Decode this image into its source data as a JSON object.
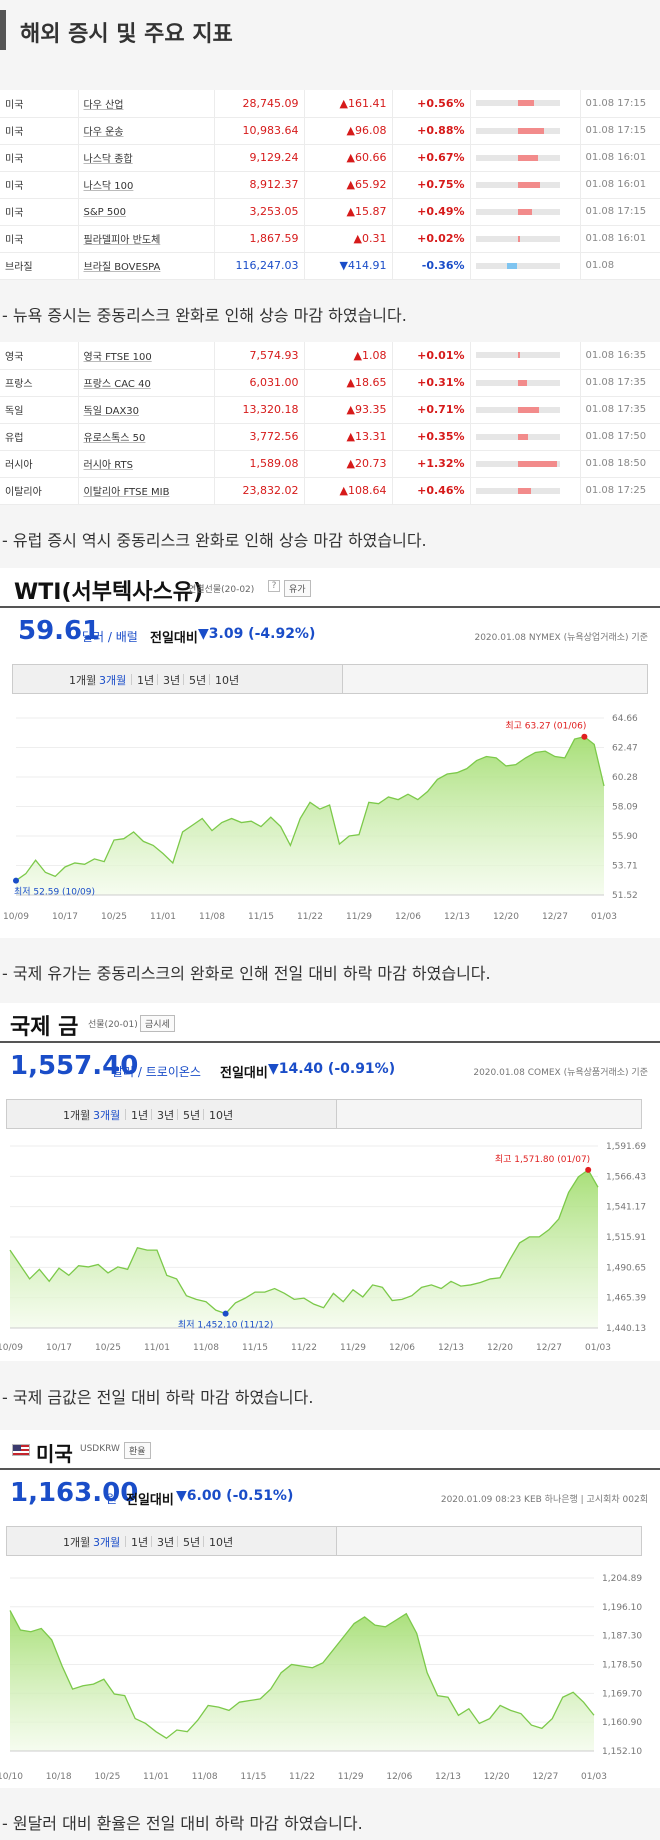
{
  "page_title": "해외 증시 및 주요 지표",
  "us_indices": [
    {
      "country": "미국",
      "name": "다우 산업",
      "price": "28,745.09",
      "change": "▲161.41",
      "pct": "+0.56%",
      "bar": 0.56,
      "time": "01.08 17:15"
    },
    {
      "country": "미국",
      "name": "다우 운송",
      "price": "10,983.64",
      "change": "▲96.08",
      "pct": "+0.88%",
      "bar": 0.88,
      "time": "01.08 17:15"
    },
    {
      "country": "미국",
      "name": "나스닥 종합",
      "price": "9,129.24",
      "change": "▲60.66",
      "pct": "+0.67%",
      "bar": 0.67,
      "time": "01.08 16:01"
    },
    {
      "country": "미국",
      "name": "나스닥 100",
      "price": "8,912.37",
      "change": "▲65.92",
      "pct": "+0.75%",
      "bar": 0.75,
      "time": "01.08 16:01"
    },
    {
      "country": "미국",
      "name": "S&P 500",
      "price": "3,253.05",
      "change": "▲15.87",
      "pct": "+0.49%",
      "bar": 0.49,
      "time": "01.08 17:15"
    },
    {
      "country": "미국",
      "name": "필라델피아 반도체",
      "price": "1,867.59",
      "change": "▲0.31",
      "pct": "+0.02%",
      "bar": 0.02,
      "time": "01.08 16:01"
    },
    {
      "country": "브라질",
      "name": "브라질 BOVESPA",
      "price": "116,247.03",
      "change": "▼414.91",
      "pct": "-0.36%",
      "bar": -0.36,
      "time": "01.08",
      "down": true
    }
  ],
  "note_us": "- 뉴욕 증시는 중동리스크 완화로 인해 상승 마감 하였습니다.",
  "eu_indices": [
    {
      "country": "영국",
      "name": "영국 FTSE 100",
      "price": "7,574.93",
      "change": "▲1.08",
      "pct": "+0.01%",
      "bar": 0.01,
      "time": "01.08 16:35"
    },
    {
      "country": "프랑스",
      "name": "프랑스 CAC 40",
      "price": "6,031.00",
      "change": "▲18.65",
      "pct": "+0.31%",
      "bar": 0.31,
      "time": "01.08 17:35"
    },
    {
      "country": "독일",
      "name": "독일 DAX30",
      "price": "13,320.18",
      "change": "▲93.35",
      "pct": "+0.71%",
      "bar": 0.71,
      "time": "01.08 17:35"
    },
    {
      "country": "유럽",
      "name": "유로스톡스 50",
      "price": "3,772.56",
      "change": "▲13.31",
      "pct": "+0.35%",
      "bar": 0.35,
      "time": "01.08 17:50"
    },
    {
      "country": "러시아",
      "name": "러시아 RTS",
      "price": "1,589.08",
      "change": "▲20.73",
      "pct": "+1.32%",
      "bar": 1.32,
      "time": "01.08 18:50"
    },
    {
      "country": "이탈리아",
      "name": "이탈리아 FTSE MIB",
      "price": "23,832.02",
      "change": "▲108.64",
      "pct": "+0.46%",
      "bar": 0.46,
      "time": "01.08 17:25"
    }
  ],
  "note_eu": "- 유럽 증시 역시 중동리스크 완화로 인해 상승 마감 하였습니다.",
  "wti": {
    "title": "WTI(서부텍사스유)",
    "sub": "연결선물(20-02)",
    "btn": "유가",
    "price": "59.61",
    "unit": "달러 / 배럴",
    "cmp_label": "전일대비",
    "change": "▼3.09 (-4.92%)",
    "source": "2020.01.08  NYMEX (뉴욕상업거래소) 기준",
    "tabs": [
      "1개월",
      "3개월",
      "1년",
      "3년",
      "5년",
      "10년"
    ],
    "active_tab": "3개월"
  },
  "note_wti": "- 국제 유가는 중동리스크의 완화로 인해 전일 대비 하락 마감 하였습니다.",
  "gold": {
    "title": "국제 금",
    "sub": "선물(20-01)",
    "btn": "금시세",
    "price": "1,557.40",
    "unit": "달러 / 트로이온스",
    "cmp_label": "전일대비",
    "change": "▼14.40 (-0.91%)",
    "source": "2020.01.08  COMEX (뉴욕상품거래소) 기준",
    "tabs": [
      "1개월",
      "3개월",
      "1년",
      "3년",
      "5년",
      "10년"
    ],
    "active_tab": "3개월"
  },
  "note_gold": "- 국제 금값은 전일 대비 하락 마감 하였습니다.",
  "usd": {
    "title": "미국",
    "sub": "USDKRW",
    "btn": "환율",
    "price": "1,163.00",
    "unit": "원",
    "cmp_label": "전일대비",
    "change": "▼6.00 (-0.51%)",
    "source": "2020.01.09  08:23  KEB 하나은행  |  고시회차 002회",
    "tabs": [
      "1개월",
      "3개월",
      "1년",
      "3년",
      "5년",
      "10년"
    ],
    "active_tab": "3개월"
  },
  "note_usd": "- 원달러 대비 환율은 전일 대비 하락 마감 하였습니다.",
  "colors": {
    "up": "#d61a1a",
    "down": "#1a4dc8",
    "area": "#b8e986",
    "line": "#7cc94a"
  },
  "chart_data": [
    {
      "type": "area",
      "title": "WTI(서부텍사스유)",
      "x_ticks": [
        "10/09",
        "10/17",
        "10/25",
        "11/01",
        "11/08",
        "11/15",
        "11/22",
        "11/29",
        "12/06",
        "12/13",
        "12/20",
        "12/27",
        "01/03"
      ],
      "y_ticks": [
        51.52,
        53.71,
        55.9,
        58.09,
        60.28,
        62.47,
        64.66
      ],
      "ylim": [
        51.52,
        64.66
      ],
      "values": [
        52.59,
        53.1,
        54.1,
        53.2,
        52.9,
        53.6,
        53.9,
        53.8,
        54.2,
        54.0,
        55.6,
        55.7,
        56.2,
        55.5,
        55.2,
        54.6,
        53.9,
        56.2,
        56.7,
        57.2,
        56.3,
        56.9,
        57.2,
        56.9,
        57.0,
        56.6,
        57.3,
        56.6,
        55.2,
        57.2,
        58.4,
        57.9,
        58.2,
        55.3,
        55.9,
        56.0,
        58.4,
        58.3,
        58.8,
        58.6,
        59.0,
        58.6,
        59.2,
        60.1,
        60.5,
        60.6,
        60.9,
        61.5,
        61.8,
        61.7,
        61.1,
        61.2,
        61.7,
        62.1,
        62.2,
        61.8,
        61.7,
        63.1,
        63.27,
        62.7,
        59.61
      ],
      "max_label": "최고 63.27 (01/06)",
      "min_label": "최저 52.59 (10/09)"
    },
    {
      "type": "area",
      "title": "국제 금",
      "x_ticks": [
        "10/09",
        "10/17",
        "10/25",
        "11/01",
        "11/08",
        "11/15",
        "11/22",
        "11/29",
        "12/06",
        "12/13",
        "12/20",
        "12/27",
        "01/03"
      ],
      "y_ticks": [
        1440.13,
        1465.39,
        1490.65,
        1515.91,
        1541.17,
        1566.43,
        1591.69
      ],
      "ylim": [
        1440.13,
        1591.69
      ],
      "values": [
        1505,
        1493,
        1481,
        1489,
        1479,
        1490,
        1484,
        1492,
        1491,
        1493,
        1486,
        1491,
        1489,
        1507,
        1505,
        1505,
        1484,
        1481,
        1467,
        1464,
        1462,
        1455,
        1452.1,
        1461,
        1465,
        1470,
        1470,
        1473,
        1469,
        1464,
        1465,
        1460,
        1457,
        1469,
        1462,
        1472,
        1466,
        1476,
        1474,
        1463,
        1464,
        1467,
        1474,
        1476,
        1473,
        1479,
        1475,
        1476,
        1478,
        1481,
        1482,
        1497,
        1511,
        1516,
        1516,
        1522,
        1531,
        1553,
        1566,
        1571.8,
        1557.4
      ],
      "max_label": "최고 1,571.80 (01/07)",
      "min_label": "최저 1,452.10 (11/12)"
    },
    {
      "type": "area",
      "title": "미국 USDKRW",
      "x_ticks": [
        "10/10",
        "10/18",
        "10/25",
        "11/01",
        "11/08",
        "11/15",
        "11/22",
        "11/29",
        "12/06",
        "12/13",
        "12/20",
        "12/27",
        "01/03"
      ],
      "y_ticks": [
        1152.1,
        1160.9,
        1169.7,
        1178.5,
        1187.3,
        1196.1,
        1204.89
      ],
      "ylim": [
        1152.1,
        1204.89
      ],
      "values": [
        1195.0,
        1189.0,
        1188.5,
        1189.5,
        1186.0,
        1178.0,
        1171.0,
        1172.0,
        1172.5,
        1174.0,
        1169.5,
        1169.0,
        1162.0,
        1160.5,
        1158.0,
        1156.0,
        1158.5,
        1158.0,
        1161.5,
        1166.0,
        1165.5,
        1164.5,
        1167.0,
        1167.5,
        1168.0,
        1171.0,
        1176.0,
        1178.5,
        1178.0,
        1177.5,
        1179.0,
        1183.0,
        1187.0,
        1191.0,
        1193.0,
        1190.5,
        1190.0,
        1192.0,
        1194.0,
        1188.0,
        1176.0,
        1169.0,
        1168.5,
        1163.0,
        1165.0,
        1160.5,
        1162.0,
        1166.0,
        1164.5,
        1163.5,
        1160.0,
        1159.0,
        1162.0,
        1168.5,
        1170.0,
        1167.0,
        1163.0
      ]
    }
  ]
}
